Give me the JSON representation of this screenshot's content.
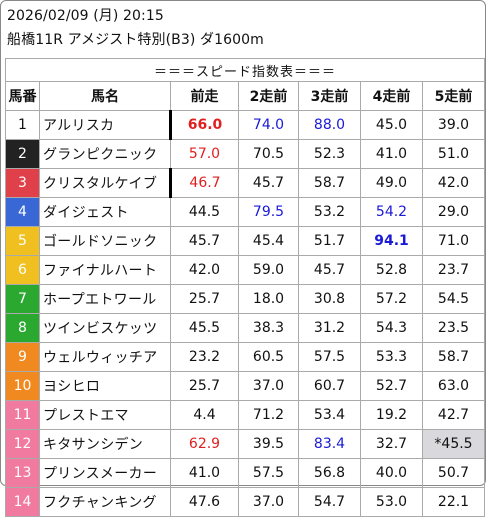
{
  "header": {
    "datetime": "2026/02/09 (月) 20:15",
    "race": "船橋11R アメジスト特別(B3) ダ1600m"
  },
  "table": {
    "caption": "＝＝＝スピード指数表＝＝＝",
    "columns": [
      "馬番",
      "馬名",
      "前走",
      "2走前",
      "3走前",
      "4走前",
      "5走前"
    ],
    "rows": [
      {
        "no": "1",
        "name": "アルリスカ",
        "vals": [
          "66.0",
          "74.0",
          "88.0",
          "45.0",
          "39.0"
        ]
      },
      {
        "no": "2",
        "name": "グランピクニック",
        "vals": [
          "57.0",
          "70.5",
          "52.3",
          "41.0",
          "51.0"
        ]
      },
      {
        "no": "3",
        "name": "クリスタルケイブ",
        "vals": [
          "46.7",
          "45.7",
          "58.7",
          "49.0",
          "42.0"
        ]
      },
      {
        "no": "4",
        "name": "ダイジェスト",
        "vals": [
          "44.5",
          "79.5",
          "53.2",
          "54.2",
          "29.0"
        ]
      },
      {
        "no": "5",
        "name": "ゴールドソニック",
        "vals": [
          "45.7",
          "45.4",
          "51.7",
          "94.1",
          "71.0"
        ]
      },
      {
        "no": "6",
        "name": "ファイナルハート",
        "vals": [
          "42.0",
          "59.0",
          "45.7",
          "52.8",
          "23.7"
        ]
      },
      {
        "no": "7",
        "name": "ホープエトワール",
        "vals": [
          "25.7",
          "18.0",
          "30.8",
          "57.2",
          "54.5"
        ]
      },
      {
        "no": "8",
        "name": "ツインビスケッツ",
        "vals": [
          "45.5",
          "38.3",
          "31.2",
          "54.3",
          "23.5"
        ]
      },
      {
        "no": "9",
        "name": "ウェルウィッチア",
        "vals": [
          "23.2",
          "60.5",
          "57.5",
          "53.3",
          "58.7"
        ]
      },
      {
        "no": "10",
        "name": "ヨシヒロ",
        "vals": [
          "25.7",
          "37.0",
          "60.7",
          "52.7",
          "63.0"
        ]
      },
      {
        "no": "11",
        "name": "プレストエマ",
        "vals": [
          "4.4",
          "71.2",
          "53.4",
          "19.2",
          "42.7"
        ]
      },
      {
        "no": "12",
        "name": "キタサンシデン",
        "vals": [
          "62.9",
          "39.5",
          "83.4",
          "32.7",
          "*45.5"
        ]
      },
      {
        "no": "13",
        "name": "プリンスメーカー",
        "vals": [
          "41.0",
          "57.5",
          "56.8",
          "40.0",
          "50.7"
        ]
      },
      {
        "no": "14",
        "name": "フクチャンキング",
        "vals": [
          "47.6",
          "37.0",
          "54.7",
          "53.0",
          "22.1"
        ]
      }
    ]
  },
  "colors": {
    "gate": [
      "#ffffff",
      "#222222",
      "#e0404a",
      "#3a67d6",
      "#f0c020",
      "#2aa830",
      "#f08a20",
      "#f07aa0"
    ],
    "red": "#e02020",
    "blue": "#1a1ad6"
  }
}
